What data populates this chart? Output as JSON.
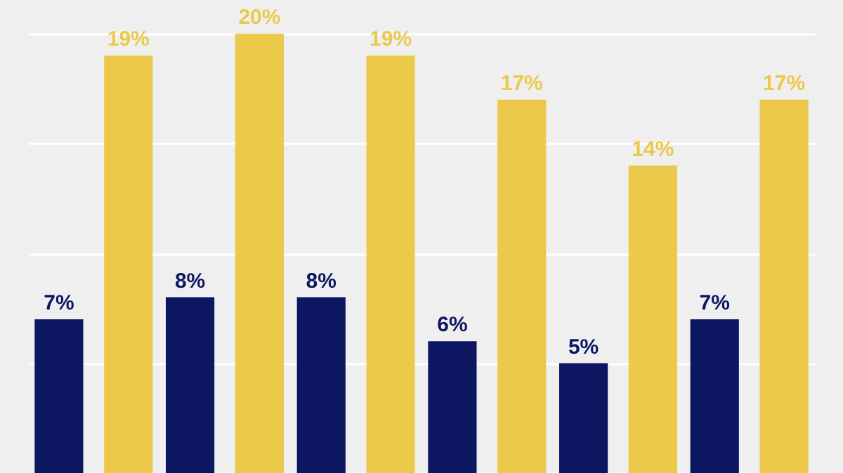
{
  "chart_data": {
    "type": "bar",
    "categories": [
      null,
      null,
      null,
      null,
      null,
      null
    ],
    "series": [
      {
        "color": "#0d1660",
        "values": [
          7,
          8,
          8,
          6,
          5,
          7
        ],
        "value_labels": [
          "7%",
          "8%",
          "8%",
          "6%",
          "5%",
          "7%"
        ]
      },
      {
        "color": "#ecc94b",
        "values": [
          19,
          20,
          19,
          17,
          14,
          17
        ],
        "value_labels": [
          "19%",
          "20%",
          "19%",
          "17%",
          "14%",
          "17%"
        ]
      }
    ],
    "grid": "y",
    "tick_labels": false
  }
}
